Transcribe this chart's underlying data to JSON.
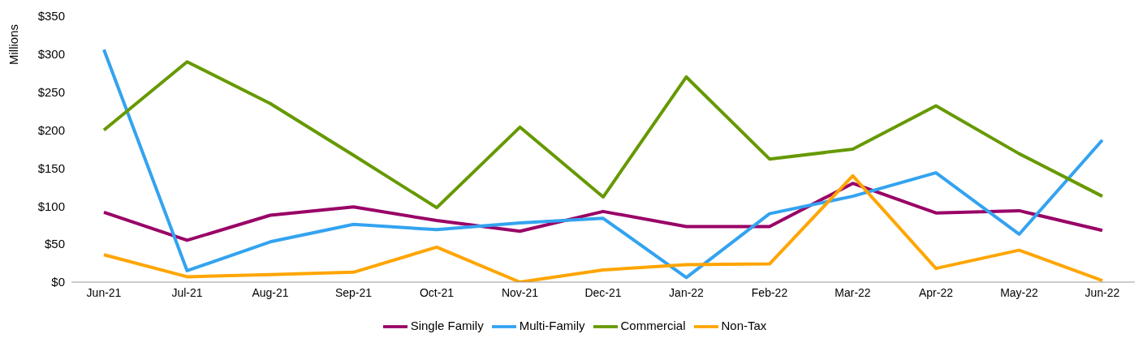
{
  "chart_data": {
    "type": "line",
    "ylabel": "Millions",
    "categories": [
      "Jun-21",
      "Jul-21",
      "Aug-21",
      "Sep-21",
      "Oct-21",
      "Nov-21",
      "Dec-21",
      "Jan-22",
      "Feb-22",
      "Mar-22",
      "Apr-22",
      "May-22",
      "Jun-22"
    ],
    "series": [
      {
        "name": "Single Family",
        "color": "#990066",
        "values": [
          92,
          55,
          88,
          99,
          81,
          67,
          93,
          73,
          73,
          130,
          91,
          94,
          68
        ]
      },
      {
        "name": "Multi-Family",
        "color": "#33a3f0",
        "values": [
          306,
          15,
          53,
          76,
          69,
          78,
          84,
          6,
          90,
          113,
          144,
          63,
          187
        ]
      },
      {
        "name": "Commercial",
        "color": "#669900",
        "values": [
          200,
          290,
          235,
          167,
          98,
          204,
          112,
          270,
          162,
          175,
          232,
          169,
          113
        ]
      },
      {
        "name": "Non-Tax",
        "color": "#ffa500",
        "values": [
          36,
          7,
          10,
          13,
          46,
          0,
          16,
          23,
          24,
          140,
          18,
          42,
          2
        ]
      }
    ],
    "ylim": [
      0,
      350
    ],
    "yticks": [
      {
        "value": 0,
        "label": "$0"
      },
      {
        "value": 50,
        "label": "$50"
      },
      {
        "value": 100,
        "label": "$100"
      },
      {
        "value": 150,
        "label": "$150"
      },
      {
        "value": 200,
        "label": "$200"
      },
      {
        "value": 250,
        "label": "$250"
      },
      {
        "value": 300,
        "label": "$300"
      },
      {
        "value": 350,
        "label": "$350"
      }
    ],
    "grid": false,
    "legend": "bottom",
    "marker": "none",
    "line_style": "solid"
  }
}
